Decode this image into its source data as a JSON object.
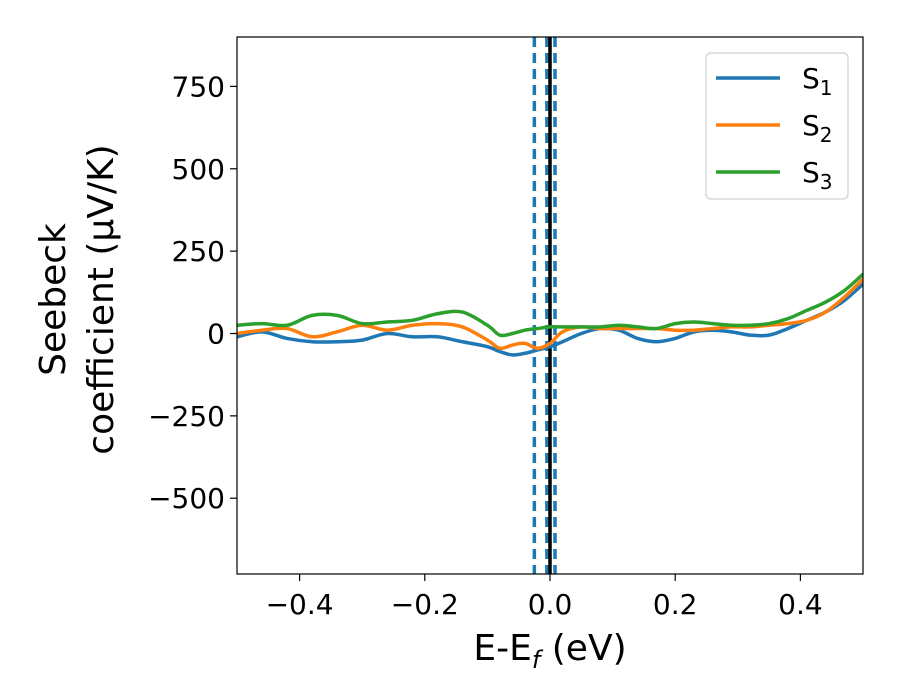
{
  "chart_data": {
    "type": "line",
    "xlabel": "E-E",
    "xlabel_subscript": "f",
    "xlabel_unit": " (eV)",
    "ylabel_line1": "Seebeck",
    "ylabel_line2": "coefficient  (μV/K)",
    "xlim": [
      -0.5,
      0.5
    ],
    "ylim": [
      -730,
      900
    ],
    "xticks": [
      -0.4,
      -0.2,
      0.0,
      0.2,
      0.4
    ],
    "xtick_labels": [
      "−0.4",
      "−0.2",
      "0.0",
      "0.2",
      "0.4"
    ],
    "yticks": [
      750,
      500,
      250,
      0,
      -250,
      -500
    ],
    "ytick_labels": [
      "750",
      "500",
      "250",
      "0",
      "−250",
      "−500"
    ],
    "grid": false,
    "legend_position": "top-right",
    "series": [
      {
        "name": "S",
        "subscript": "1",
        "color": "#1f77b4",
        "x": [
          -0.5,
          -0.46,
          -0.42,
          -0.38,
          -0.34,
          -0.3,
          -0.26,
          -0.22,
          -0.18,
          -0.14,
          -0.1,
          -0.08,
          -0.06,
          -0.04,
          -0.02,
          0.0,
          0.02,
          0.05,
          0.08,
          0.11,
          0.14,
          0.17,
          0.2,
          0.23,
          0.26,
          0.29,
          0.32,
          0.35,
          0.38,
          0.41,
          0.44,
          0.47,
          0.5
        ],
        "y": [
          -10,
          5,
          -15,
          -25,
          -25,
          -20,
          0,
          -10,
          -10,
          -25,
          -40,
          -55,
          -65,
          -60,
          -50,
          -40,
          -25,
          0,
          15,
          10,
          -15,
          -25,
          -15,
          5,
          10,
          5,
          -5,
          -5,
          15,
          40,
          65,
          100,
          150
        ]
      },
      {
        "name": "S",
        "subscript": "2",
        "color": "#ff7f0e",
        "x": [
          -0.5,
          -0.46,
          -0.42,
          -0.38,
          -0.34,
          -0.3,
          -0.26,
          -0.22,
          -0.18,
          -0.14,
          -0.1,
          -0.08,
          -0.06,
          -0.04,
          -0.02,
          0.0,
          0.02,
          0.05,
          0.08,
          0.11,
          0.14,
          0.17,
          0.2,
          0.23,
          0.26,
          0.29,
          0.32,
          0.35,
          0.38,
          0.41,
          0.44,
          0.47,
          0.5
        ],
        "y": [
          0,
          10,
          15,
          -10,
          5,
          25,
          10,
          25,
          30,
          20,
          -20,
          -45,
          -35,
          -30,
          -45,
          -30,
          5,
          20,
          15,
          15,
          15,
          15,
          10,
          10,
          15,
          20,
          20,
          25,
          30,
          40,
          65,
          110,
          165
        ]
      },
      {
        "name": "S",
        "subscript": "3",
        "color": "#2ca02c",
        "x": [
          -0.5,
          -0.46,
          -0.42,
          -0.38,
          -0.34,
          -0.3,
          -0.26,
          -0.22,
          -0.18,
          -0.14,
          -0.1,
          -0.08,
          -0.06,
          -0.04,
          -0.02,
          0.0,
          0.02,
          0.05,
          0.08,
          0.11,
          0.14,
          0.17,
          0.2,
          0.23,
          0.26,
          0.29,
          0.32,
          0.35,
          0.38,
          0.41,
          0.44,
          0.47,
          0.5
        ],
        "y": [
          25,
          30,
          25,
          55,
          55,
          30,
          35,
          40,
          60,
          65,
          25,
          -5,
          0,
          10,
          15,
          20,
          20,
          20,
          20,
          25,
          20,
          15,
          30,
          35,
          30,
          25,
          25,
          30,
          45,
          70,
          95,
          130,
          180
        ]
      }
    ],
    "vlines": [
      {
        "x": -0.025,
        "color": "#1f77b4",
        "style": "dashed"
      },
      {
        "x": -0.005,
        "color": "#1f77b4",
        "style": "dashed"
      },
      {
        "x": 0.008,
        "color": "#1f77b4",
        "style": "dashed"
      },
      {
        "x": 0.0,
        "color": "#000000",
        "style": "solid"
      }
    ]
  }
}
